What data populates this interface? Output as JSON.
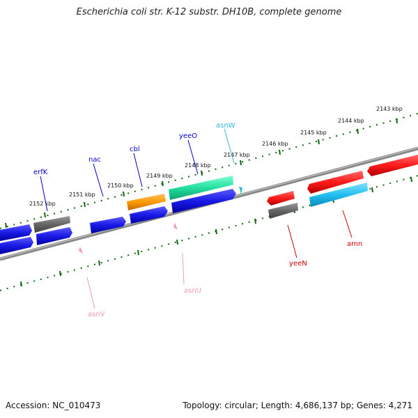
{
  "title": "Escherichia coli str. K-12 substr. DH10B, complete genome",
  "footer": {
    "accession": "Accession: NC_010473",
    "topology": "Topology: circular; Length: 4,686,137 bp; Genes: 4,271"
  },
  "scale": {
    "unit": "kbp",
    "ticks": [
      {
        "label": "2152 kbp",
        "kbp": 2152
      },
      {
        "label": "2151 kbp",
        "kbp": 2151
      },
      {
        "label": "2150 kbp",
        "kbp": 2150
      },
      {
        "label": "2149 kbp",
        "kbp": 2149
      },
      {
        "label": "2148 kbp",
        "kbp": 2148
      },
      {
        "label": "2147 kbp",
        "kbp": 2147
      },
      {
        "label": "2146 kbp",
        "kbp": 2146
      },
      {
        "label": "2145 kbp",
        "kbp": 2145
      },
      {
        "label": "2144 kbp",
        "kbp": 2144
      },
      {
        "label": "2143 kbp",
        "kbp": 2143
      }
    ]
  },
  "features": [
    {
      "name": "erfK",
      "labeled": true,
      "color": "#0000cc",
      "type": "gene"
    },
    {
      "name": "nac",
      "labeled": true,
      "color": "#0000cc",
      "type": "gene"
    },
    {
      "name": "cbl",
      "labeled": true,
      "color": "#0000cc",
      "type": "gene"
    },
    {
      "name": "yeeO",
      "labeled": true,
      "color": "#0000cc",
      "type": "gene"
    },
    {
      "name": "asnW",
      "labeled": true,
      "color": "#33bbdd",
      "type": "tRNA"
    },
    {
      "name": "asnU",
      "labeled": true,
      "color": "#ee99bb",
      "type": "tRNA"
    },
    {
      "name": "asnV",
      "labeled": true,
      "color": "#ee99bb",
      "type": "tRNA"
    },
    {
      "name": "yeeN",
      "labeled": true,
      "color": "#cc0000",
      "type": "gene"
    },
    {
      "name": "amn",
      "labeled": true,
      "color": "#cc0000",
      "type": "gene"
    }
  ],
  "colors": {
    "forward_gene": "#1a1ae6",
    "reverse_gene": "#ff1a1a",
    "other_gene": "#666666",
    "orange_feature": "#ff9900",
    "green_feature": "#22e0a0",
    "cyan_feature": "#22c0f0",
    "backbone": "#888888",
    "tick": "#116611"
  }
}
